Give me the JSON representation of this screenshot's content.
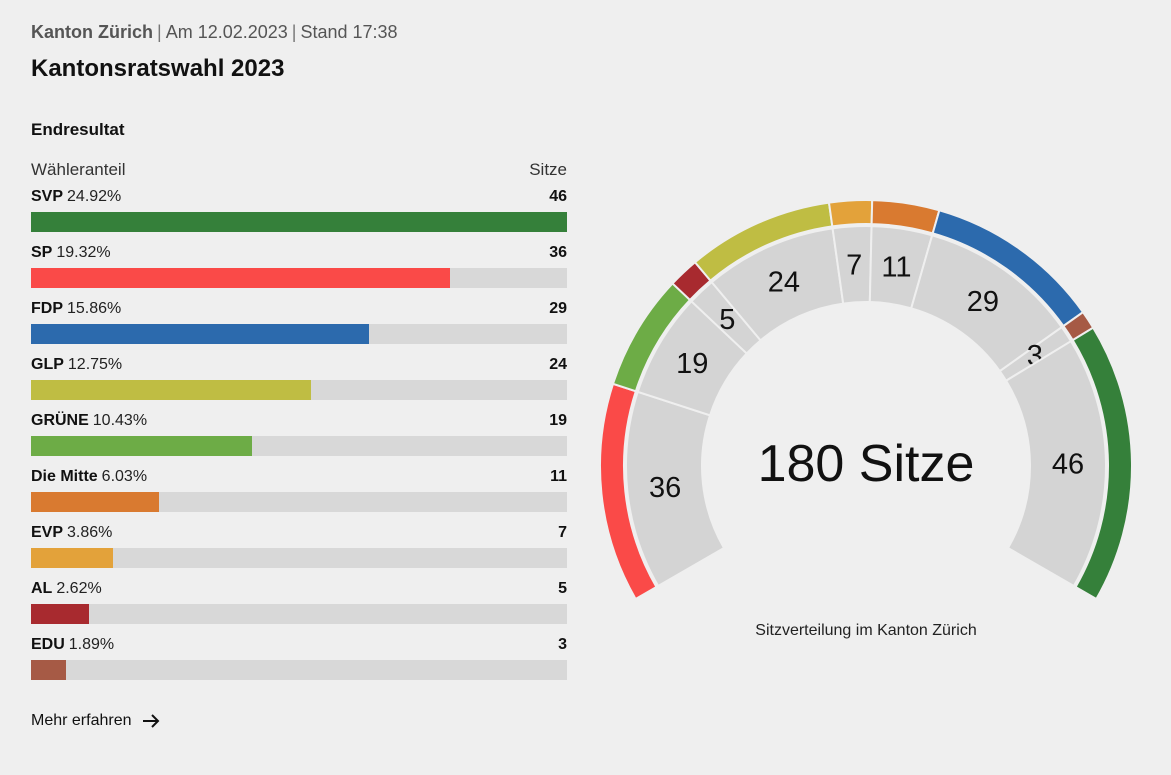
{
  "header": {
    "region": "Kanton Zürich",
    "date": "Am 12.02.2023",
    "status": "Stand 17:38",
    "title": "Kantonsratswahl 2023"
  },
  "results": {
    "subtitle": "Endresultat",
    "col_share": "Wähleranteil",
    "col_seats": "Sitze"
  },
  "parties": [
    {
      "name": "SVP",
      "share": "24.92%",
      "seats": 46,
      "color": "#35803a"
    },
    {
      "name": "SP",
      "share": "19.32%",
      "seats": 36,
      "color": "#fa4a48"
    },
    {
      "name": "FDP",
      "share": "15.86%",
      "seats": 29,
      "color": "#2c6aad"
    },
    {
      "name": "GLP",
      "share": "12.75%",
      "seats": 24,
      "color": "#bfbd43"
    },
    {
      "name": "GRÜNE",
      "share": "10.43%",
      "seats": 19,
      "color": "#6dac46"
    },
    {
      "name": "Die Mitte",
      "share": "6.03%",
      "seats": 11,
      "color": "#d97a30"
    },
    {
      "name": "EVP",
      "share": "3.86%",
      "seats": 7,
      "color": "#e3a23a"
    },
    {
      "name": "AL",
      "share": "2.62%",
      "seats": 5,
      "color": "#a82a2f"
    },
    {
      "name": "EDU",
      "share": "1.89%",
      "seats": 3,
      "color": "#a65a45"
    }
  ],
  "chart_data": {
    "type": "pie",
    "categories": [
      "SP",
      "GRÜNE",
      "AL",
      "GLP",
      "EVP",
      "Die Mitte",
      "FDP",
      "EDU",
      "SVP"
    ],
    "values": [
      36,
      19,
      5,
      24,
      7,
      11,
      29,
      3,
      46
    ],
    "total_label": "180 Sitze",
    "caption": "Sitzverteilung im Kanton Zürich"
  },
  "footer": {
    "more_label": "Mehr erfahren"
  }
}
